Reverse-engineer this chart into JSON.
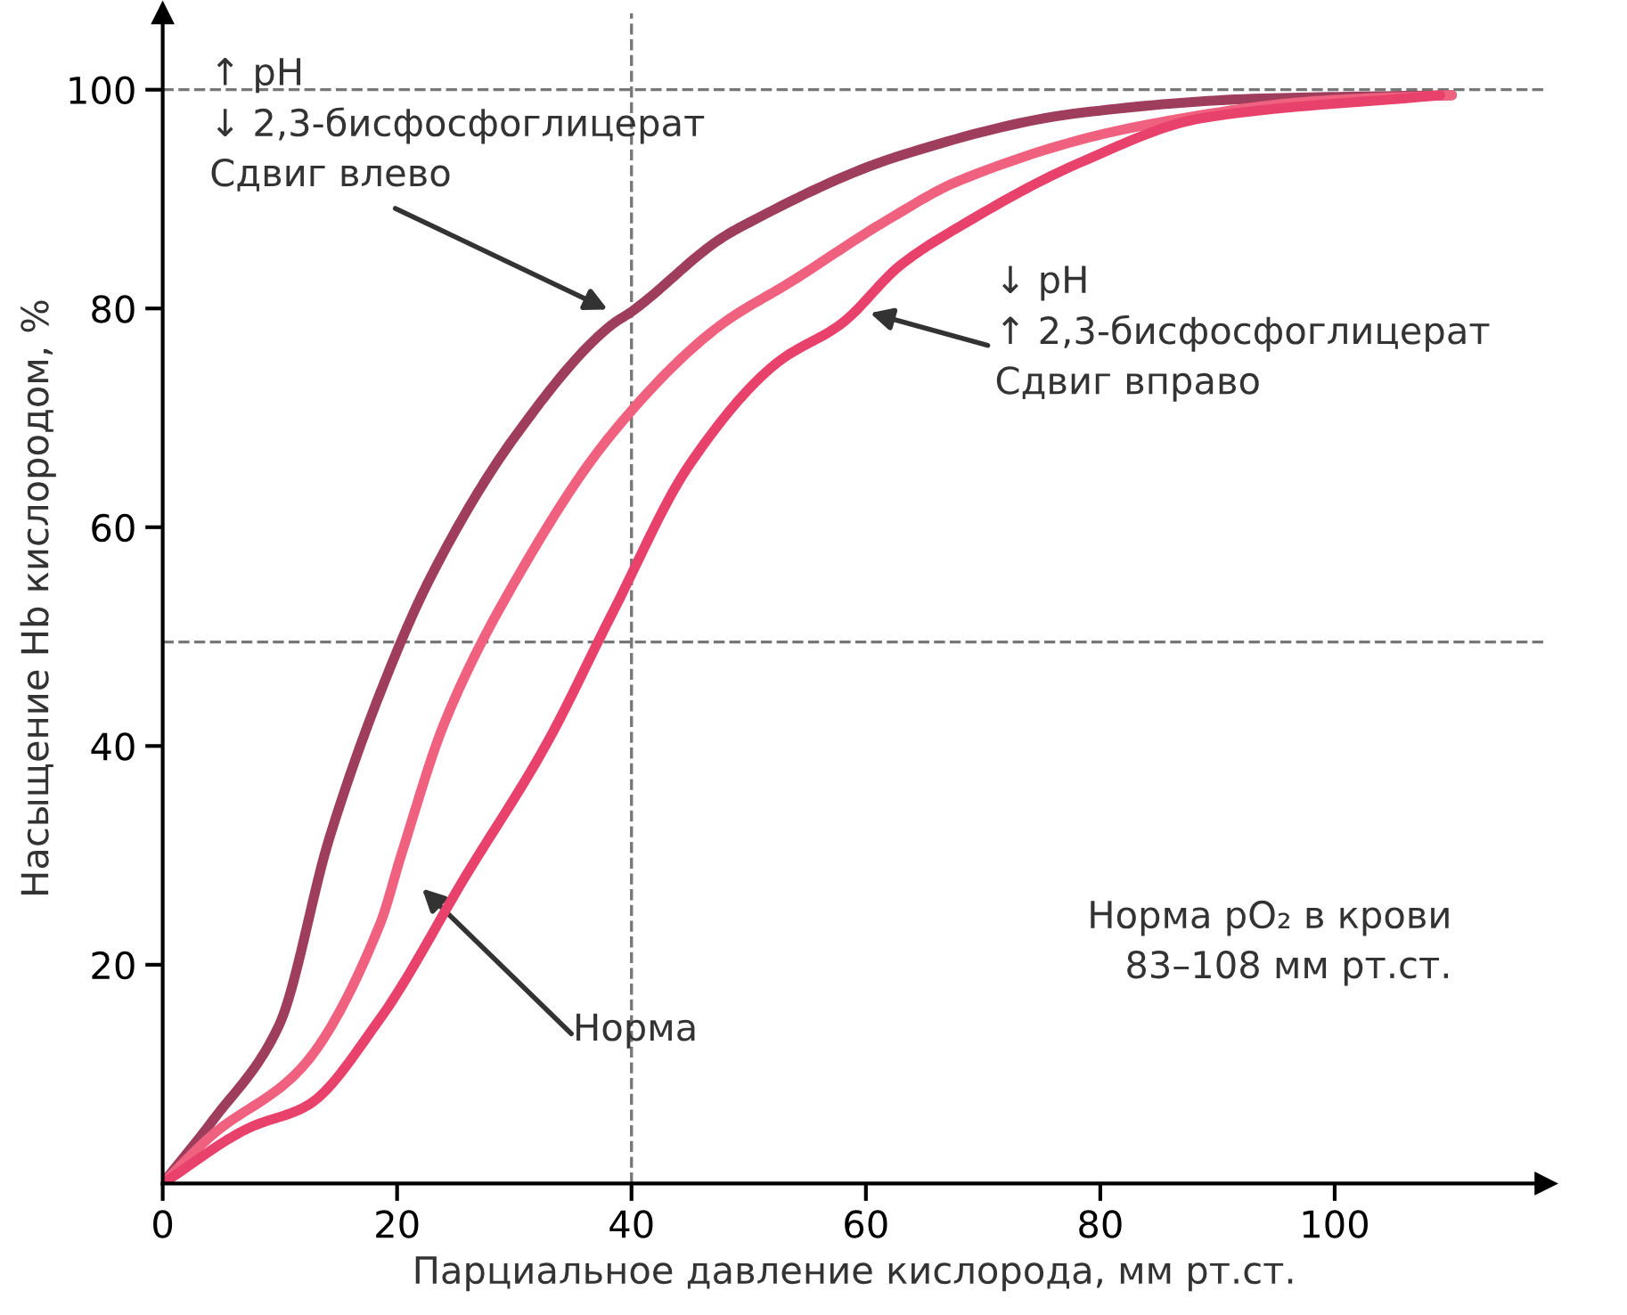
{
  "chart_data": {
    "type": "line",
    "xlabel": "Парциальное давление кислорода, мм рт.ст.",
    "ylabel": "Насыщение Hb кислородом, %",
    "xlim": [
      0,
      118
    ],
    "ylim": [
      0,
      107
    ],
    "xticks": [
      0,
      20,
      40,
      60,
      80,
      100
    ],
    "yticks": [
      20,
      40,
      60,
      80,
      100
    ],
    "grid": false,
    "legend": false,
    "marker": "none",
    "line_style": "solid",
    "series": [
      {
        "color": "#9e3d5c",
        "x": [
          0,
          4.3,
          9.9,
          14.2,
          18.5,
          22.8,
          30.2,
          38.3,
          40,
          47.5,
          49.4,
          63,
          78.4,
          93.8,
          110
        ],
        "values": [
          0,
          5.8,
          14.4,
          31.5,
          44.7,
          55.3,
          68.5,
          78.5,
          79.7,
          86.3,
          87.5,
          94,
          97.9,
          99.2,
          99.5
        ]
      },
      {
        "color": "#f0607f",
        "x": [
          0,
          4.3,
          11.7,
          18.5,
          20.4,
          24,
          30.2,
          38.3,
          47.5,
          53.7,
          61.7,
          68,
          83.5,
          98.9,
          110
        ],
        "values": [
          0,
          4.5,
          10.4,
          23.6,
          30.2,
          42,
          55.3,
          68.5,
          78.4,
          82.5,
          88,
          91.7,
          96.7,
          99,
          99.5
        ]
      },
      {
        "color": "#e8416b",
        "x": [
          0,
          7.4,
          12.3,
          18.5,
          25.9,
          32.7,
          38.3,
          45,
          52.5,
          57.9,
          63,
          68,
          78.4,
          88.7,
          109
        ],
        "values": [
          0,
          5.1,
          7.1,
          15,
          28.2,
          40.1,
          52,
          65.8,
          75.1,
          78.6,
          84,
          87.5,
          93.4,
          97.4,
          99.5
        ]
      }
    ],
    "ref_lines": [
      {
        "axis": "y",
        "value": 100,
        "color": "#777777",
        "line_style": "dashed"
      },
      {
        "axis": "x",
        "value": 40,
        "color": "#777777",
        "line_style": "dashed"
      },
      {
        "axis": "y",
        "value": 49.5,
        "color": "#777777",
        "line_style": "dashed"
      }
    ],
    "annotations": [
      "↑ pH\n↓ 2,3-бисфосфоглицерат\nСдвиг влево",
      "Норма",
      "↓ pH\n↑ 2,3-бисфосфоглицерат\nСдвиг вправо",
      "Норма pO₂ в крови\n83–108 мм рт.ст."
    ]
  }
}
